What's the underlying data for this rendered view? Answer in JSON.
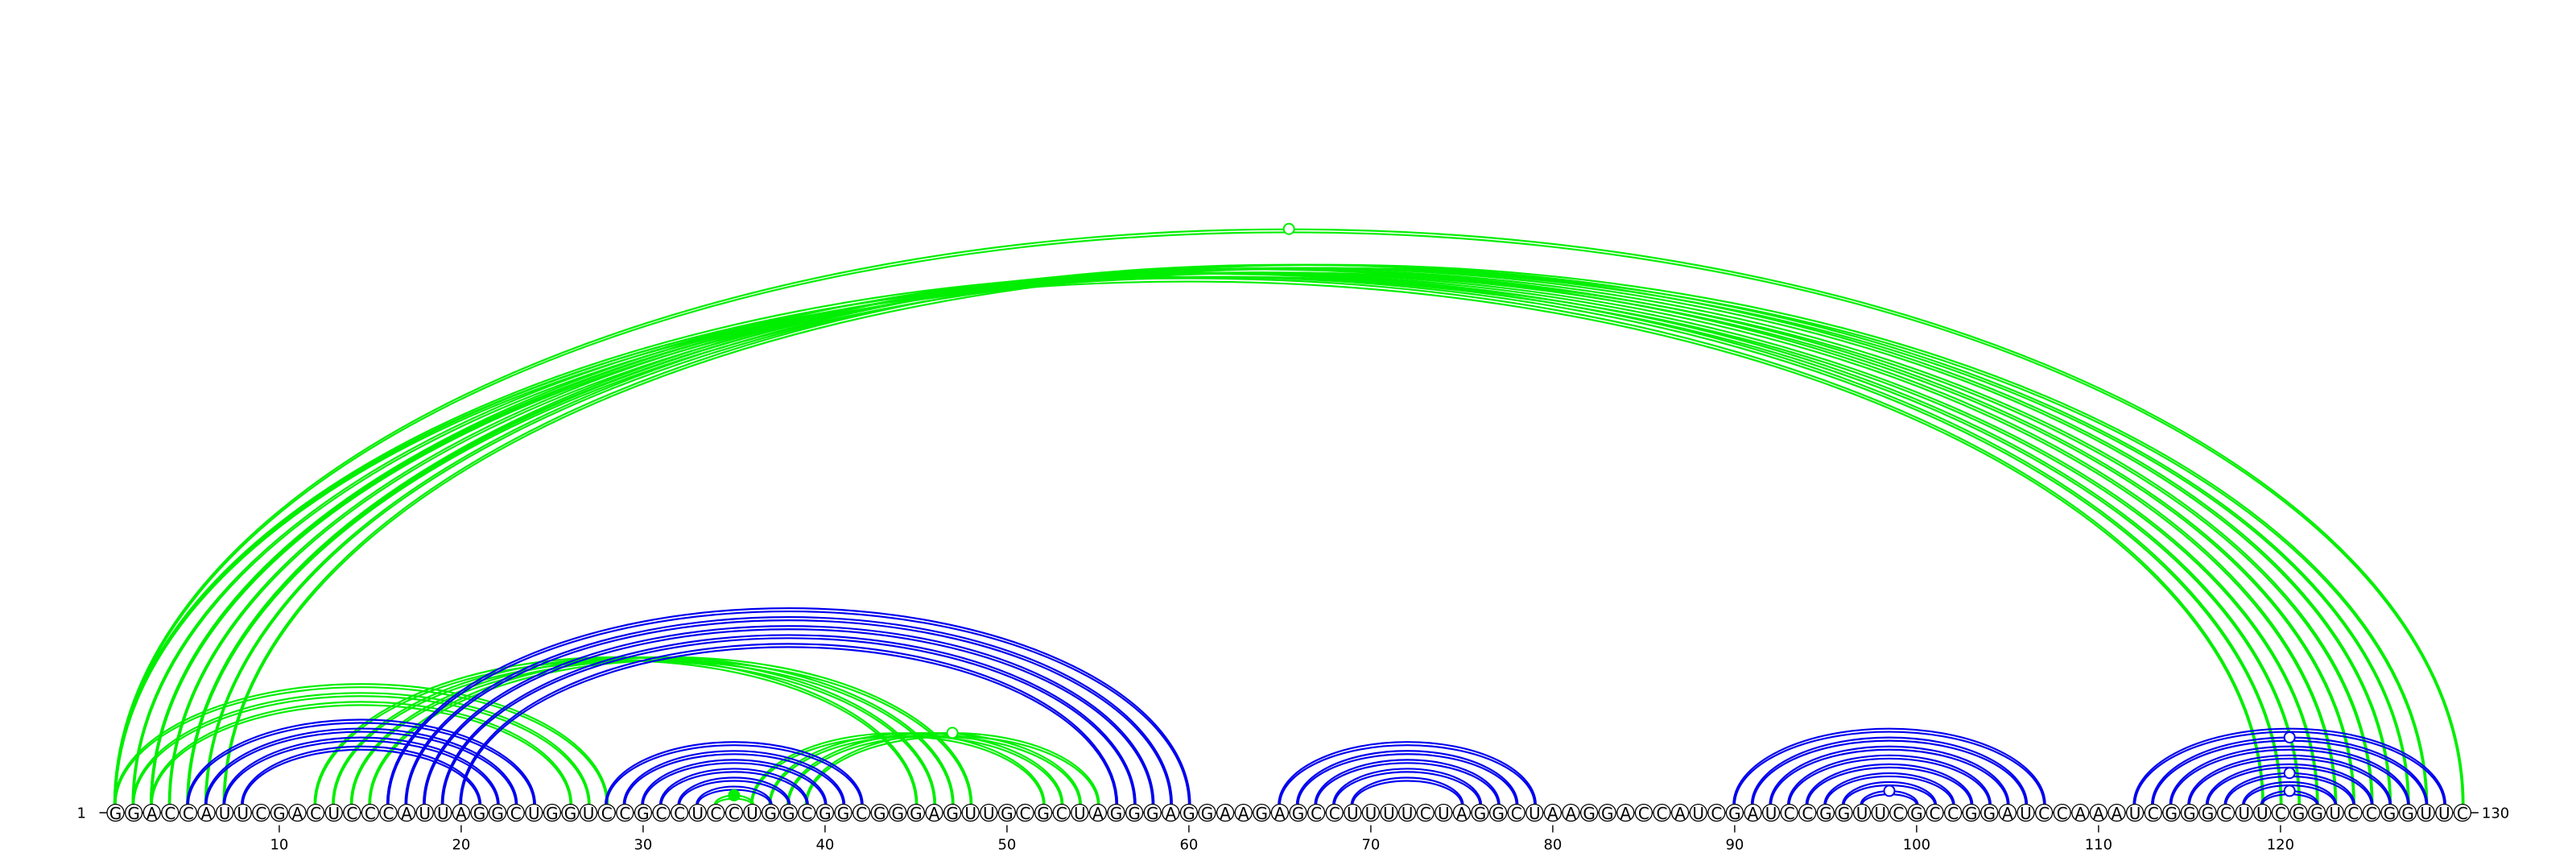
{
  "sequence": "GGACCAUUCGACUCCCAUUAGGCUGGUCCGCCUCCUGGCGGCGGGAGUUGCGCUAGGGAGGAAGAGCCUUUUCUAGGCUAAGGACCAUCGAUCCGGUUCGCCGGAUCCAAAUCGGGCUUCGGUCCGGUUC",
  "start_label": "1",
  "end_label": "130",
  "ticks": [
    10,
    20,
    30,
    40,
    50,
    60,
    70,
    80,
    90,
    100,
    110,
    120
  ],
  "colors": {
    "green": "#00ee00",
    "blue": "#0000ee"
  },
  "arcs": [
    {
      "i": 1,
      "j": 119,
      "color": "green"
    },
    {
      "i": 1,
      "j": 120,
      "color": "green"
    },
    {
      "i": 2,
      "j": 121,
      "color": "green"
    },
    {
      "i": 3,
      "j": 122,
      "color": "green"
    },
    {
      "i": 3,
      "j": 123,
      "color": "green"
    },
    {
      "i": 4,
      "j": 124,
      "color": "green"
    },
    {
      "i": 5,
      "j": 125,
      "color": "green"
    },
    {
      "i": 5,
      "j": 126,
      "color": "green"
    },
    {
      "i": 6,
      "j": 127,
      "color": "green"
    },
    {
      "i": 7,
      "j": 128,
      "color": "green"
    },
    {
      "i": 1,
      "j": 130,
      "color": "green"
    },
    {
      "i": 1,
      "j": 28,
      "color": "green"
    },
    {
      "i": 2,
      "j": 27,
      "color": "green"
    },
    {
      "i": 3,
      "j": 26,
      "color": "green"
    },
    {
      "i": 12,
      "j": 45,
      "color": "green"
    },
    {
      "i": 13,
      "j": 46,
      "color": "green"
    },
    {
      "i": 14,
      "j": 47,
      "color": "green"
    },
    {
      "i": 15,
      "j": 48,
      "color": "green"
    },
    {
      "i": 36,
      "j": 52,
      "color": "green"
    },
    {
      "i": 37,
      "j": 53,
      "color": "green"
    },
    {
      "i": 38,
      "j": 54,
      "color": "green"
    },
    {
      "i": 39,
      "j": 55,
      "color": "green"
    },
    {
      "i": 34,
      "j": 36,
      "color": "green"
    },
    {
      "i": 5,
      "j": 24,
      "color": "blue"
    },
    {
      "i": 6,
      "j": 23,
      "color": "blue"
    },
    {
      "i": 7,
      "j": 22,
      "color": "blue"
    },
    {
      "i": 8,
      "j": 21,
      "color": "blue"
    },
    {
      "i": 16,
      "j": 60,
      "color": "blue"
    },
    {
      "i": 17,
      "j": 59,
      "color": "blue"
    },
    {
      "i": 18,
      "j": 58,
      "color": "blue"
    },
    {
      "i": 19,
      "j": 57,
      "color": "blue"
    },
    {
      "i": 20,
      "j": 56,
      "color": "blue"
    },
    {
      "i": 28,
      "j": 42,
      "color": "blue"
    },
    {
      "i": 29,
      "j": 41,
      "color": "blue"
    },
    {
      "i": 30,
      "j": 40,
      "color": "blue"
    },
    {
      "i": 31,
      "j": 39,
      "color": "blue"
    },
    {
      "i": 32,
      "j": 38,
      "color": "blue"
    },
    {
      "i": 33,
      "j": 37,
      "color": "blue"
    },
    {
      "i": 65,
      "j": 79,
      "color": "blue"
    },
    {
      "i": 66,
      "j": 78,
      "color": "blue"
    },
    {
      "i": 67,
      "j": 77,
      "color": "blue"
    },
    {
      "i": 68,
      "j": 76,
      "color": "blue"
    },
    {
      "i": 69,
      "j": 75,
      "color": "blue"
    },
    {
      "i": 90,
      "j": 107,
      "color": "blue"
    },
    {
      "i": 91,
      "j": 106,
      "color": "blue"
    },
    {
      "i": 92,
      "j": 105,
      "color": "blue"
    },
    {
      "i": 93,
      "j": 104,
      "color": "blue"
    },
    {
      "i": 94,
      "j": 103,
      "color": "blue"
    },
    {
      "i": 95,
      "j": 102,
      "color": "blue"
    },
    {
      "i": 96,
      "j": 101,
      "color": "blue"
    },
    {
      "i": 97,
      "j": 100,
      "color": "blue"
    },
    {
      "i": 112,
      "j": 129,
      "color": "blue"
    },
    {
      "i": 113,
      "j": 128,
      "color": "blue"
    },
    {
      "i": 114,
      "j": 127,
      "color": "blue"
    },
    {
      "i": 115,
      "j": 126,
      "color": "blue"
    },
    {
      "i": 116,
      "j": 125,
      "color": "blue"
    },
    {
      "i": 117,
      "j": 124,
      "color": "blue"
    },
    {
      "i": 118,
      "j": 123,
      "color": "blue"
    },
    {
      "i": 119,
      "j": 122,
      "color": "blue"
    }
  ],
  "markers": [
    {
      "i": 1,
      "j": 130,
      "color": "green",
      "style": "open"
    },
    {
      "i": 39,
      "j": 55,
      "color": "green",
      "style": "open"
    },
    {
      "i": 34,
      "j": 36,
      "color": "green",
      "style": "filled"
    },
    {
      "i": 97,
      "j": 100,
      "color": "blue",
      "style": "open"
    },
    {
      "i": 113,
      "j": 128,
      "color": "blue",
      "style": "open"
    },
    {
      "i": 117,
      "j": 124,
      "color": "blue",
      "style": "open"
    },
    {
      "i": 119,
      "j": 122,
      "color": "blue",
      "style": "open"
    }
  ]
}
